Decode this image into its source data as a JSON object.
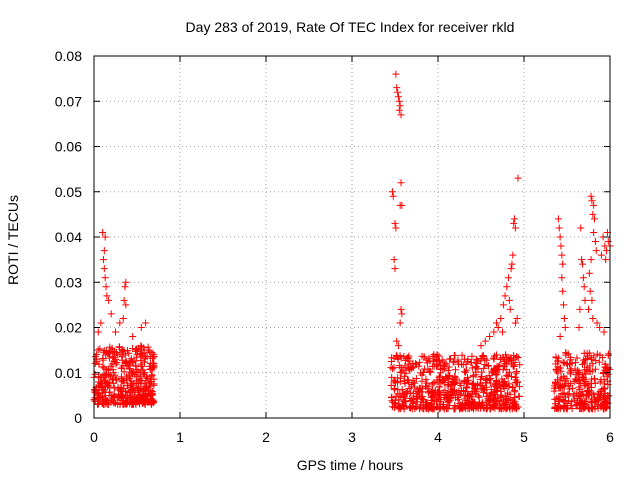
{
  "chart_data": {
    "type": "scatter",
    "title": "Day 283 of 2019, Rate Of TEC Index for receiver rkld",
    "xlabel": "GPS time / hours",
    "ylabel": "ROTI / TECUs",
    "xlim": [
      0,
      6
    ],
    "ylim": [
      0,
      0.08
    ],
    "x_ticks": [
      "0",
      "1",
      "2",
      "3",
      "4",
      "5",
      "6"
    ],
    "y_ticks": [
      "0",
      "0.01",
      "0.02",
      "0.03",
      "0.04",
      "0.05",
      "0.06",
      "0.07",
      "0.08"
    ],
    "grid": true,
    "marker": "+",
    "color": "#ff0000",
    "clusters": [
      {
        "x_range": [
          0.0,
          0.7
        ],
        "y_base": [
          0.003,
          0.016
        ],
        "count": 420
      },
      {
        "x_range": [
          3.45,
          4.95
        ],
        "y_base": [
          0.002,
          0.014
        ],
        "count": 700
      },
      {
        "x_range": [
          5.35,
          6.0
        ],
        "y_base": [
          0.002,
          0.015
        ],
        "count": 300
      }
    ],
    "outliers": [
      {
        "x": 0.1,
        "y": 0.041
      },
      {
        "x": 0.13,
        "y": 0.04
      },
      {
        "x": 0.12,
        "y": 0.037
      },
      {
        "x": 0.11,
        "y": 0.035
      },
      {
        "x": 0.12,
        "y": 0.033
      },
      {
        "x": 0.13,
        "y": 0.031
      },
      {
        "x": 0.14,
        "y": 0.029
      },
      {
        "x": 0.15,
        "y": 0.027
      },
      {
        "x": 0.17,
        "y": 0.026
      },
      {
        "x": 0.08,
        "y": 0.021
      },
      {
        "x": 0.05,
        "y": 0.019
      },
      {
        "x": 0.03,
        "y": 0.014
      },
      {
        "x": 0.37,
        "y": 0.03
      },
      {
        "x": 0.36,
        "y": 0.029
      },
      {
        "x": 0.35,
        "y": 0.026
      },
      {
        "x": 0.37,
        "y": 0.025
      },
      {
        "x": 0.34,
        "y": 0.022
      },
      {
        "x": 0.3,
        "y": 0.021
      },
      {
        "x": 0.25,
        "y": 0.019
      },
      {
        "x": 0.55,
        "y": 0.02
      },
      {
        "x": 0.2,
        "y": 0.023
      },
      {
        "x": 0.45,
        "y": 0.018
      },
      {
        "x": 0.6,
        "y": 0.021
      },
      {
        "x": 3.51,
        "y": 0.076
      },
      {
        "x": 3.52,
        "y": 0.073
      },
      {
        "x": 3.53,
        "y": 0.072
      },
      {
        "x": 3.54,
        "y": 0.071
      },
      {
        "x": 3.55,
        "y": 0.07
      },
      {
        "x": 3.56,
        "y": 0.069
      },
      {
        "x": 3.57,
        "y": 0.067
      },
      {
        "x": 3.55,
        "y": 0.068
      },
      {
        "x": 3.47,
        "y": 0.05
      },
      {
        "x": 3.48,
        "y": 0.049
      },
      {
        "x": 3.5,
        "y": 0.043
      },
      {
        "x": 3.51,
        "y": 0.042
      },
      {
        "x": 3.56,
        "y": 0.047
      },
      {
        "x": 3.58,
        "y": 0.047
      },
      {
        "x": 3.57,
        "y": 0.052
      },
      {
        "x": 3.49,
        "y": 0.035
      },
      {
        "x": 3.5,
        "y": 0.033
      },
      {
        "x": 3.57,
        "y": 0.024
      },
      {
        "x": 3.58,
        "y": 0.023
      },
      {
        "x": 3.56,
        "y": 0.021
      },
      {
        "x": 3.52,
        "y": 0.017
      },
      {
        "x": 3.54,
        "y": 0.016
      },
      {
        "x": 4.93,
        "y": 0.053
      },
      {
        "x": 4.89,
        "y": 0.044
      },
      {
        "x": 4.88,
        "y": 0.043
      },
      {
        "x": 4.9,
        "y": 0.042
      },
      {
        "x": 4.87,
        "y": 0.036
      },
      {
        "x": 4.86,
        "y": 0.034
      },
      {
        "x": 4.85,
        "y": 0.033
      },
      {
        "x": 4.82,
        "y": 0.031
      },
      {
        "x": 4.8,
        "y": 0.029
      },
      {
        "x": 4.78,
        "y": 0.027
      },
      {
        "x": 4.83,
        "y": 0.026
      },
      {
        "x": 4.76,
        "y": 0.025
      },
      {
        "x": 4.84,
        "y": 0.024
      },
      {
        "x": 4.73,
        "y": 0.022
      },
      {
        "x": 4.9,
        "y": 0.021
      },
      {
        "x": 4.7,
        "y": 0.02
      },
      {
        "x": 4.65,
        "y": 0.019
      },
      {
        "x": 4.6,
        "y": 0.018
      },
      {
        "x": 4.55,
        "y": 0.017
      },
      {
        "x": 4.5,
        "y": 0.016
      },
      {
        "x": 4.92,
        "y": 0.022
      },
      {
        "x": 4.68,
        "y": 0.021
      },
      {
        "x": 4.75,
        "y": 0.019
      },
      {
        "x": 5.4,
        "y": 0.044
      },
      {
        "x": 5.41,
        "y": 0.042
      },
      {
        "x": 5.42,
        "y": 0.04
      },
      {
        "x": 5.43,
        "y": 0.038
      },
      {
        "x": 5.44,
        "y": 0.036
      },
      {
        "x": 5.45,
        "y": 0.034
      },
      {
        "x": 5.44,
        "y": 0.031
      },
      {
        "x": 5.45,
        "y": 0.028
      },
      {
        "x": 5.46,
        "y": 0.025
      },
      {
        "x": 5.47,
        "y": 0.022
      },
      {
        "x": 5.48,
        "y": 0.02
      },
      {
        "x": 5.42,
        "y": 0.018
      },
      {
        "x": 5.66,
        "y": 0.042
      },
      {
        "x": 5.67,
        "y": 0.035
      },
      {
        "x": 5.68,
        "y": 0.034
      },
      {
        "x": 5.69,
        "y": 0.031
      },
      {
        "x": 5.7,
        "y": 0.029
      },
      {
        "x": 5.71,
        "y": 0.026
      },
      {
        "x": 5.65,
        "y": 0.024
      },
      {
        "x": 5.64,
        "y": 0.02
      },
      {
        "x": 5.78,
        "y": 0.049
      },
      {
        "x": 5.79,
        "y": 0.048
      },
      {
        "x": 5.81,
        "y": 0.047
      },
      {
        "x": 5.8,
        "y": 0.045
      },
      {
        "x": 5.82,
        "y": 0.044
      },
      {
        "x": 5.81,
        "y": 0.041
      },
      {
        "x": 5.83,
        "y": 0.039
      },
      {
        "x": 5.84,
        "y": 0.037
      },
      {
        "x": 5.78,
        "y": 0.035
      },
      {
        "x": 5.76,
        "y": 0.032
      },
      {
        "x": 5.77,
        "y": 0.028
      },
      {
        "x": 5.79,
        "y": 0.026
      },
      {
        "x": 5.75,
        "y": 0.024
      },
      {
        "x": 5.8,
        "y": 0.022
      },
      {
        "x": 5.85,
        "y": 0.021
      },
      {
        "x": 5.92,
        "y": 0.04
      },
      {
        "x": 5.94,
        "y": 0.038
      },
      {
        "x": 5.96,
        "y": 0.037
      },
      {
        "x": 5.98,
        "y": 0.039
      },
      {
        "x": 5.97,
        "y": 0.041
      },
      {
        "x": 5.9,
        "y": 0.036
      },
      {
        "x": 5.95,
        "y": 0.035
      },
      {
        "x": 6.0,
        "y": 0.038
      },
      {
        "x": 5.88,
        "y": 0.02
      },
      {
        "x": 5.93,
        "y": 0.019
      }
    ]
  }
}
